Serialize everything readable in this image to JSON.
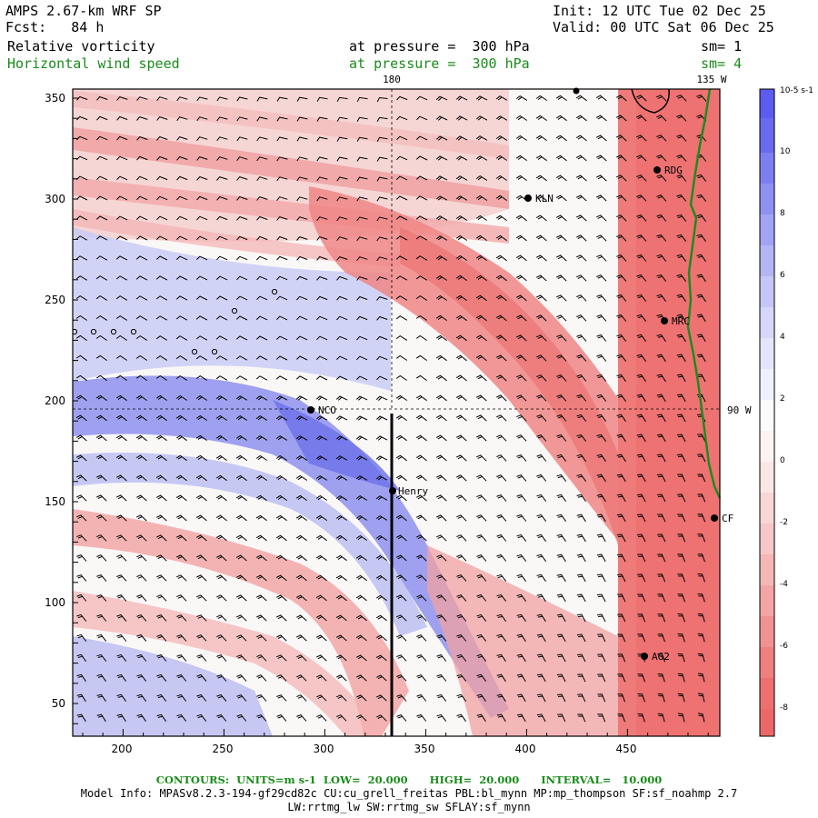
{
  "header": {
    "model": "AMPS 2.67-km WRF SP",
    "fcst": "Fcst:   84 h",
    "init": "Init: 12 UTC Tue 02 Dec 25",
    "valid": "Valid: 00 UTC Sat 06 Dec 25",
    "field1": "Relative vorticity",
    "field1_level": "at pressure =  300 hPa",
    "field1_sm": "sm= 1",
    "field2": "Horizontal wind speed",
    "field2_level": "at pressure =  300 hPa",
    "field2_sm": "sm= 4"
  },
  "plot": {
    "x_ticks": [
      "200",
      "250",
      "300",
      "350",
      "400",
      "450"
    ],
    "y_ticks": [
      "350",
      "300",
      "250",
      "200",
      "150",
      "100",
      "50"
    ],
    "lon_top_1": "180",
    "lon_top_2": "135 W",
    "lon_right": "90 W",
    "stations": [
      "RDG",
      "KLN",
      "MRC",
      "NCO",
      "Henry",
      "AG2",
      "CF"
    ]
  },
  "colorbar": {
    "units": "10-5 s-1",
    "labels": [
      "10",
      "8",
      "6",
      "4",
      "2",
      "0",
      "-2",
      "-4",
      "-6",
      "-8"
    ]
  },
  "footer": {
    "contours": "CONTOURS:  UNITS=m s-1  LOW=  20.000      HIGH=  20.000      INTERVAL=   10.000",
    "model_info": "Model Info: MPASv8.2.3-194-gf29cd82c CU:cu_grell_freitas PBL:bl_mynn MP:mp_thompson SF:sf_noahmp 2.7",
    "model_info2": "LW:rrtmg_lw SW:rrtmg_sw SFLAY:sf_mynn"
  },
  "colors": {
    "positive": "#5e5ef0",
    "negative": "#ee6a6a",
    "coast": "#1f8a1f"
  }
}
